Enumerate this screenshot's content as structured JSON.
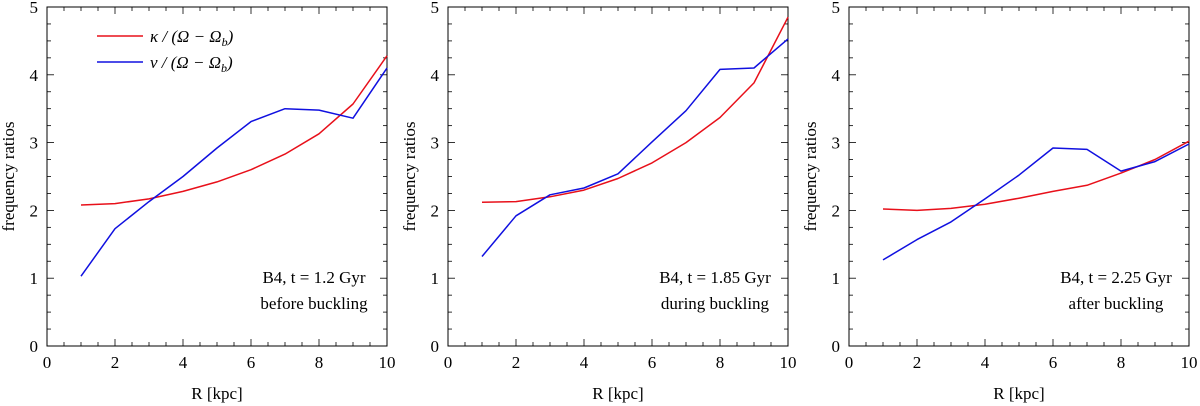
{
  "figure": {
    "legend": [
      {
        "name": "kappa",
        "label": "κ / (Ω − Ω",
        "sub": "b",
        "tail": ")",
        "color": "#e8101a"
      },
      {
        "name": "nu",
        "label": "ν / (Ω − Ω",
        "sub": "b",
        "tail": ")",
        "color": "#1010e0"
      }
    ]
  },
  "chart_data": [
    {
      "type": "line",
      "xlabel": "R [kpc]",
      "ylabel": "frequency  ratios",
      "xlim": [
        0,
        10
      ],
      "ylim": [
        0,
        5
      ],
      "xticks": [
        0,
        2,
        4,
        6,
        8,
        10
      ],
      "yticks": [
        0,
        1,
        2,
        3,
        4,
        5
      ],
      "annotation": [
        "B4,  t = 1.2 Gyr",
        "before buckling"
      ],
      "series": [
        {
          "name": "κ / (Ω − Ω_b)",
          "color": "#e8101a",
          "x": [
            1,
            2,
            3,
            4,
            5,
            6,
            7,
            8,
            9,
            10
          ],
          "y": [
            2.08,
            2.1,
            2.17,
            2.28,
            2.42,
            2.6,
            2.83,
            3.13,
            3.57,
            4.28
          ]
        },
        {
          "name": "ν / (Ω − Ω_b)",
          "color": "#1010e0",
          "x": [
            1,
            2,
            3,
            4,
            5,
            6,
            7,
            8,
            9,
            10
          ],
          "y": [
            1.03,
            1.73,
            2.13,
            2.5,
            2.92,
            3.31,
            3.5,
            3.48,
            3.36,
            4.1
          ]
        }
      ]
    },
    {
      "type": "line",
      "xlabel": "R [kpc]",
      "ylabel": "frequency  ratios",
      "xlim": [
        0,
        10
      ],
      "ylim": [
        0,
        5
      ],
      "xticks": [
        0,
        2,
        4,
        6,
        8,
        10
      ],
      "yticks": [
        0,
        1,
        2,
        3,
        4,
        5
      ],
      "annotation": [
        "B4,  t = 1.85 Gyr",
        "during buckling"
      ],
      "series": [
        {
          "name": "κ / (Ω − Ω_b)",
          "color": "#e8101a",
          "x": [
            1,
            2,
            3,
            4,
            5,
            6,
            7,
            8,
            9,
            10
          ],
          "y": [
            2.12,
            2.13,
            2.2,
            2.3,
            2.47,
            2.7,
            3.0,
            3.37,
            3.88,
            4.85
          ]
        },
        {
          "name": "ν / (Ω − Ω_b)",
          "color": "#1010e0",
          "x": [
            1,
            2,
            3,
            4,
            5,
            6,
            7,
            8,
            9,
            10
          ],
          "y": [
            1.32,
            1.92,
            2.23,
            2.33,
            2.54,
            3.01,
            3.47,
            4.08,
            4.1,
            4.53
          ]
        }
      ]
    },
    {
      "type": "line",
      "xlabel": "R [kpc]",
      "ylabel": "frequency  ratios",
      "xlim": [
        0,
        10
      ],
      "ylim": [
        0,
        5
      ],
      "xticks": [
        0,
        2,
        4,
        6,
        8,
        10
      ],
      "yticks": [
        0,
        1,
        2,
        3,
        4,
        5
      ],
      "annotation": [
        "B4,  t = 2.25 Gyr",
        "after buckling"
      ],
      "series": [
        {
          "name": "κ / (Ω − Ω_b)",
          "color": "#e8101a",
          "x": [
            1,
            2,
            3,
            4,
            5,
            6,
            7,
            8,
            9,
            10
          ],
          "y": [
            2.02,
            2.0,
            2.03,
            2.09,
            2.18,
            2.28,
            2.37,
            2.55,
            2.75,
            3.02
          ]
        },
        {
          "name": "ν / (Ω − Ω_b)",
          "color": "#1010e0",
          "x": [
            1,
            2,
            3,
            4,
            5,
            6,
            7,
            8,
            9,
            10
          ],
          "y": [
            1.27,
            1.57,
            1.83,
            2.17,
            2.52,
            2.92,
            2.9,
            2.58,
            2.72,
            2.98
          ]
        }
      ]
    }
  ]
}
